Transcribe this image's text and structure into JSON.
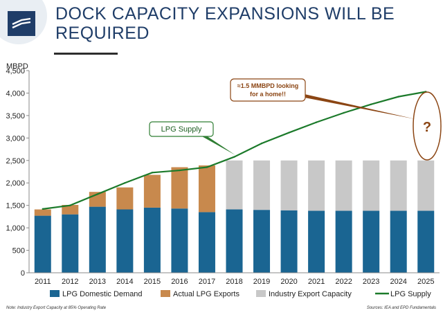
{
  "title": "DOCK CAPACITY EXPANSIONS WILL BE REQUIRED",
  "colors": {
    "domestic": "#1a6592",
    "exports": "#c8894d",
    "capacity": "#c8c8c8",
    "supply": "#1b7a2a",
    "callout_supply_border": "#2e7d32",
    "callout_brown": "#8b4513",
    "title": "#1f3d68"
  },
  "notes": {
    "footnote": "Note: Industry Export Capacity at 85% Operating Rate",
    "source": "Sources:  IEA and EPD Fundamentals"
  },
  "chart_data": {
    "type": "bar",
    "ylabel": "MBPD",
    "ylim": [
      0,
      4500
    ],
    "yticks": [
      "0",
      "500",
      "1,000",
      "1,500",
      "2,000",
      "2,500",
      "3,000",
      "3,500",
      "4,000",
      "4,500"
    ],
    "categories": [
      "2011",
      "2012",
      "2013",
      "2014",
      "2015",
      "2016",
      "2017",
      "2018",
      "2019",
      "2020",
      "2021",
      "2022",
      "2023",
      "2024",
      "2025"
    ],
    "series": [
      {
        "name": "LPG Domestic Demand",
        "kind": "stacked-bar",
        "values": [
          1270,
          1300,
          1470,
          1410,
          1450,
          1430,
          1350,
          1410,
          1400,
          1390,
          1380,
          1380,
          1380,
          1380,
          1380
        ]
      },
      {
        "name": "Actual LPG Exports",
        "kind": "stacked-bar",
        "values": [
          140,
          210,
          330,
          490,
          730,
          920,
          1040,
          null,
          null,
          null,
          null,
          null,
          null,
          null,
          null
        ]
      },
      {
        "name": "Industry Export Capacity",
        "kind": "stacked-bar",
        "values": [
          null,
          null,
          null,
          null,
          null,
          null,
          null,
          1090,
          1100,
          1110,
          1120,
          1120,
          1120,
          1120,
          1120
        ]
      },
      {
        "name": "LPG Supply",
        "kind": "line",
        "values": [
          1420,
          1500,
          1750,
          2000,
          2230,
          2280,
          2350,
          2580,
          2880,
          3120,
          3350,
          3560,
          3750,
          3920,
          4030
        ]
      }
    ],
    "annotations": [
      {
        "text": "LPG Supply",
        "target": "LPG Supply line near 2018"
      },
      {
        "text": "≈1.5 MMBPD looking for a home!!",
        "target": "2025 gap between supply and capacity"
      },
      {
        "text": "?",
        "target": "2025"
      }
    ],
    "grid": false,
    "legend": "bottom"
  }
}
